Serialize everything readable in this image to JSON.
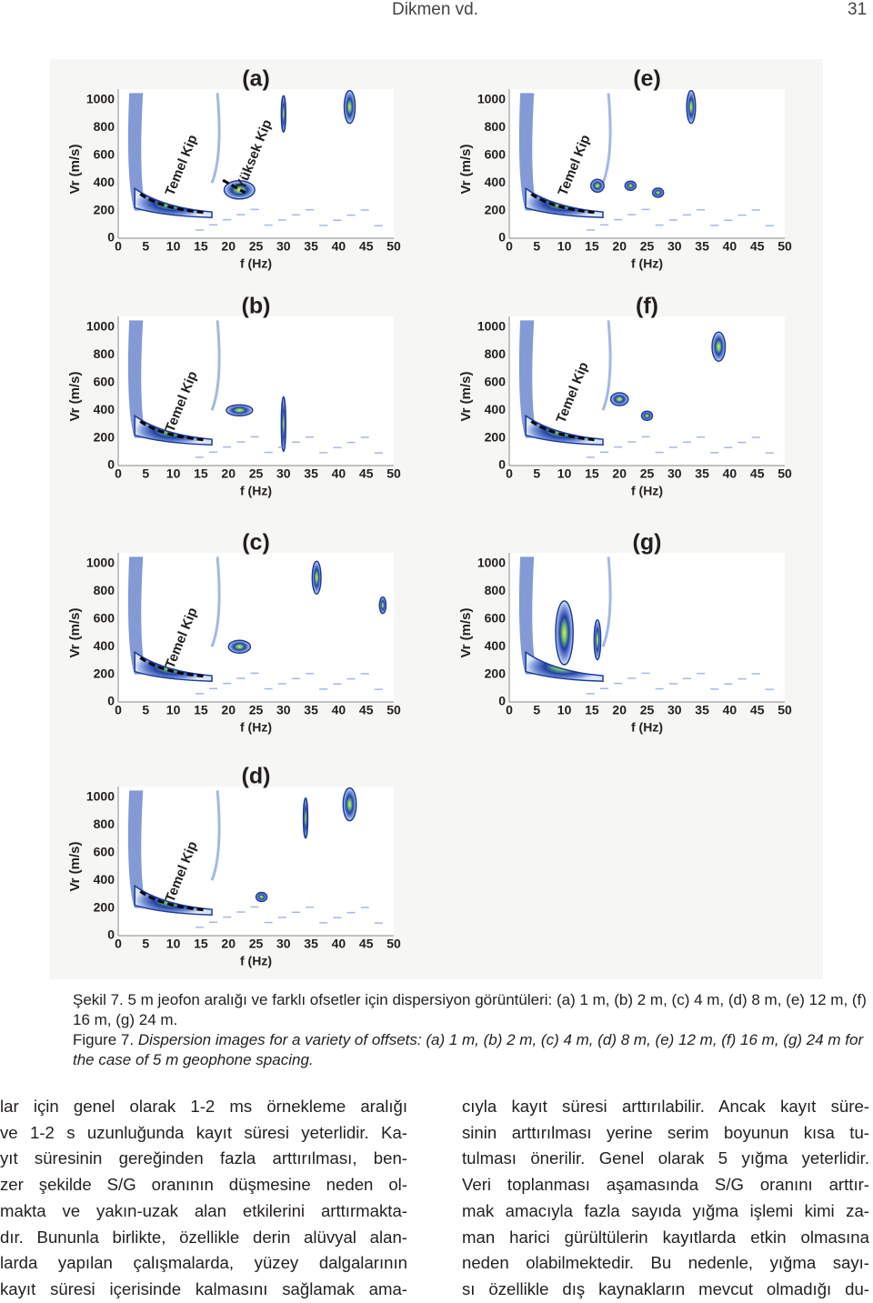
{
  "header": {
    "author": "Dikmen vd.",
    "page": "31"
  },
  "figure": {
    "panels": [
      {
        "label": "(a)",
        "y_label": "Vr (m/s)",
        "x_label": "f (Hz)",
        "yticks": [
          1000,
          800,
          600,
          400,
          200,
          0
        ],
        "xticks": [
          0,
          5,
          10,
          15,
          20,
          25,
          30,
          35,
          40,
          45,
          50
        ],
        "annotations": [
          "Temel Kip",
          "Yüksek Kip"
        ]
      },
      {
        "label": "(b)",
        "y_label": "Vr (m/s)",
        "x_label": "f (Hz)",
        "yticks": [
          1000,
          800,
          600,
          400,
          200,
          0
        ],
        "xticks": [
          0,
          5,
          10,
          15,
          20,
          25,
          30,
          35,
          40,
          45,
          50
        ],
        "annotations": [
          "Temel Kip"
        ]
      },
      {
        "label": "(c)",
        "y_label": "Vr (m/s)",
        "x_label": "f (Hz)",
        "yticks": [
          1000,
          800,
          600,
          400,
          200,
          0
        ],
        "xticks": [
          0,
          5,
          10,
          15,
          20,
          25,
          30,
          35,
          40,
          45,
          50
        ],
        "annotations": [
          "Temel Kip"
        ]
      },
      {
        "label": "(d)",
        "y_label": "Vr (m/s)",
        "x_label": "f (Hz)",
        "yticks": [
          1000,
          800,
          600,
          400,
          200,
          0
        ],
        "xticks": [
          0,
          5,
          10,
          15,
          20,
          25,
          30,
          35,
          40,
          45,
          50
        ],
        "annotations": [
          "Temel Kip"
        ]
      },
      {
        "label": "(e)",
        "y_label": "Vr (m/s)",
        "x_label": "f (Hz)",
        "yticks": [
          1000,
          800,
          600,
          400,
          200,
          0
        ],
        "xticks": [
          0,
          5,
          10,
          15,
          20,
          25,
          30,
          35,
          40,
          45,
          50
        ],
        "annotations": [
          "Temel Kip"
        ]
      },
      {
        "label": "(f)",
        "y_label": "Vr (m/s)",
        "x_label": "f (Hz)",
        "yticks": [
          1000,
          800,
          600,
          400,
          200,
          0
        ],
        "xticks": [
          0,
          5,
          10,
          15,
          20,
          25,
          30,
          35,
          40,
          45,
          50
        ],
        "annotations": [
          "Temel Kip"
        ]
      },
      {
        "label": "(g)",
        "y_label": "Vr (m/s)",
        "x_label": "f (Hz)",
        "yticks": [
          1000,
          800,
          600,
          400,
          200,
          0
        ],
        "xticks": [
          0,
          5,
          10,
          15,
          20,
          25,
          30,
          35,
          40,
          45,
          50
        ],
        "annotations": []
      }
    ]
  },
  "caption_tr": "Şekil 7. 5 m jeofon aralığı ve farklı ofsetler için dispersiyon görüntüleri: (a) 1 m, (b) 2 m, (c) 4 m, (d) 8 m, (e) 12 m, (f) 16 m, (g) 24 m.",
  "caption_en": {
    "label": "Figure 7.",
    "text": "Dispersion images for a variety of offsets: (a) 1 m, (b) 2 m, (c) 4 m, (d) 8 m, (e) 12 m, (f) 16 m, (g) 24 m for the case of 5 m geophone spacing."
  },
  "columns": [
    [
      "lar için genel olarak 1-2 ms örnekleme aralığı",
      "ve 1-2 s uzunluğunda kayıt süresi yeterlidir. Ka-",
      "yıt süresinin gereğinden fazla arttırılması, ben-",
      "zer şekilde S/G oranının düşmesine neden ol-",
      "makta ve yakın-uzak alan etkilerini arttırmakta-",
      "dır. Bununla birlikte, özellikle derin alüvyal alan-",
      "larda yapılan çalışmalarda, yüzey dalgalarının",
      "kayıt süresi içerisinde kalmasını sağlamak ama-"
    ],
    [
      "cıyla kayıt süresi arttırılabilir. Ancak kayıt süre-",
      "sinin arttırılması yerine serim boyunun kısa tu-",
      "tulması önerilir. Genel olarak 5 yığma yeterlidir.",
      "Veri toplanması aşamasında S/G oranını arttır-",
      "mak amacıyla fazla sayıda yığma işlemi kimi za-",
      "man harici gürültülerin kayıtlarda etkin olmasına",
      "neden olabilmektedir. Bu nedenle, yığma sayı-",
      "sı özellikle dış kaynakların mevcut olmadığı du-"
    ]
  ]
}
